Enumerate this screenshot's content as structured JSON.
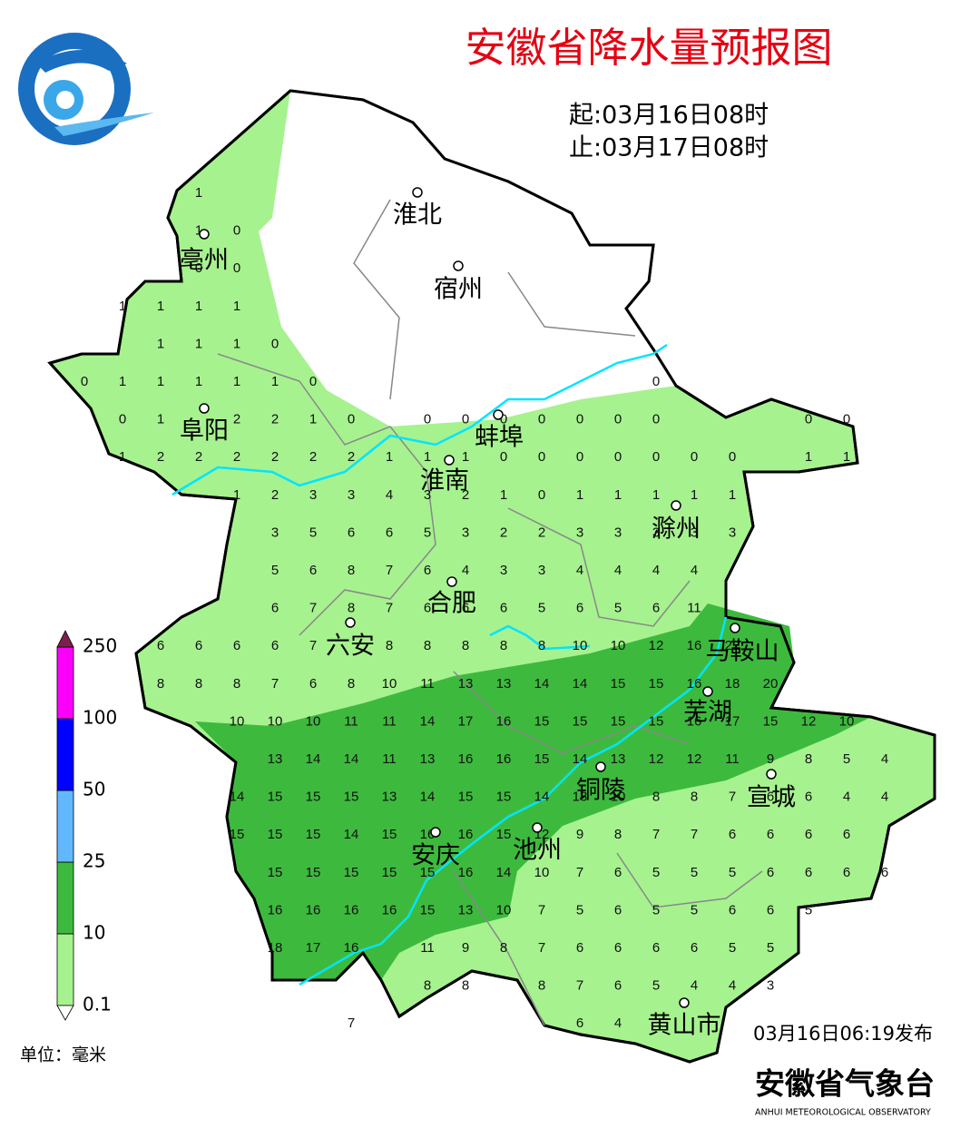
{
  "header": {
    "title": "安徽省降水量预报图",
    "start": "起:03月16日08时",
    "end": "止:03月17日08时"
  },
  "cities": [
    "淮北",
    "宿州",
    "亳州",
    "阜阳",
    "蚌埠",
    "淮南",
    "滁州",
    "合肥",
    "六安",
    "马鞍山",
    "芜湖",
    "宣城",
    "铜陵",
    "池州",
    "安庆",
    "黄山市"
  ],
  "legend": {
    "levels": [
      0.1,
      10,
      25,
      50,
      100,
      250
    ],
    "colors": [
      "#a6f28f",
      "#3dba3d",
      "#61b8ff",
      "#0000fe",
      "#fa00fa"
    ],
    "top_color": "#7e1e4f",
    "unit": "单位：毫米"
  },
  "footer": {
    "issued": "03月16日06:19发布",
    "agency": "安徽省气象台",
    "agency_en": "ANHUI METEOROLOGICAL OBSERVATORY"
  },
  "grid": [
    [
      null,
      null,
      null,
      1,
      null,
      null,
      null,
      null,
      null,
      null,
      null,
      null,
      null,
      null,
      null,
      null,
      null,
      null,
      null,
      null,
      null,
      null,
      null
    ],
    [
      null,
      null,
      null,
      1,
      0,
      null,
      null,
      null,
      null,
      null,
      null,
      null,
      null,
      null,
      null,
      null,
      null,
      null,
      null,
      null,
      null,
      null,
      null
    ],
    [
      null,
      null,
      null,
      0,
      0,
      null,
      null,
      null,
      null,
      null,
      null,
      null,
      null,
      null,
      null,
      null,
      null,
      null,
      null,
      null,
      null,
      null,
      null
    ],
    [
      null,
      1,
      1,
      1,
      1,
      null,
      null,
      null,
      null,
      null,
      null,
      null,
      null,
      null,
      null,
      null,
      null,
      null,
      null,
      null,
      null,
      null,
      null
    ],
    [
      null,
      null,
      1,
      1,
      1,
      0,
      null,
      null,
      null,
      null,
      null,
      null,
      null,
      null,
      null,
      null,
      null,
      null,
      null,
      null,
      null,
      null,
      null
    ],
    [
      0,
      1,
      1,
      1,
      1,
      1,
      0,
      null,
      null,
      null,
      null,
      null,
      null,
      null,
      null,
      0,
      null,
      null,
      null,
      null,
      null,
      null,
      null
    ],
    [
      null,
      0,
      1,
      null,
      2,
      2,
      1,
      0,
      null,
      0,
      0,
      0,
      0,
      0,
      0,
      0,
      null,
      null,
      null,
      0,
      0,
      null,
      null
    ],
    [
      null,
      1,
      2,
      2,
      2,
      2,
      2,
      2,
      1,
      1,
      1,
      0,
      0,
      0,
      0,
      0,
      0,
      0,
      null,
      1,
      1,
      null,
      null
    ],
    [
      null,
      null,
      null,
      null,
      1,
      2,
      3,
      3,
      4,
      3,
      2,
      1,
      0,
      1,
      1,
      1,
      1,
      1,
      null,
      null,
      null,
      null,
      null
    ],
    [
      null,
      null,
      null,
      null,
      null,
      3,
      5,
      6,
      6,
      5,
      3,
      2,
      2,
      3,
      3,
      3,
      3,
      3,
      null,
      null,
      null,
      null,
      null
    ],
    [
      null,
      null,
      null,
      null,
      null,
      5,
      6,
      8,
      7,
      6,
      4,
      3,
      3,
      4,
      4,
      4,
      4,
      null,
      null,
      null,
      null,
      null,
      null
    ],
    [
      null,
      null,
      null,
      null,
      null,
      6,
      7,
      8,
      7,
      6,
      6,
      6,
      5,
      6,
      5,
      6,
      11,
      null,
      null,
      null,
      null,
      null,
      null
    ],
    [
      null,
      null,
      6,
      6,
      6,
      6,
      7,
      null,
      8,
      8,
      8,
      8,
      8,
      10,
      10,
      12,
      16,
      22,
      null,
      null,
      null,
      null,
      null
    ],
    [
      null,
      null,
      8,
      8,
      8,
      7,
      6,
      8,
      10,
      11,
      13,
      13,
      14,
      14,
      15,
      15,
      16,
      18,
      20,
      null,
      null,
      null,
      null
    ],
    [
      null,
      null,
      null,
      null,
      10,
      10,
      10,
      11,
      11,
      14,
      17,
      16,
      15,
      15,
      15,
      15,
      16,
      17,
      15,
      12,
      10,
      null,
      null
    ],
    [
      null,
      null,
      null,
      null,
      null,
      13,
      14,
      14,
      11,
      13,
      16,
      16,
      15,
      14,
      13,
      12,
      12,
      11,
      9,
      8,
      5,
      4,
      null
    ],
    [
      null,
      null,
      null,
      null,
      14,
      15,
      15,
      15,
      13,
      14,
      15,
      15,
      14,
      13,
      10,
      8,
      8,
      7,
      6,
      6,
      4,
      4,
      null
    ],
    [
      null,
      null,
      null,
      null,
      15,
      15,
      15,
      14,
      15,
      16,
      16,
      15,
      12,
      9,
      8,
      7,
      7,
      6,
      6,
      6,
      6,
      null,
      null
    ],
    [
      null,
      null,
      null,
      null,
      null,
      15,
      15,
      15,
      15,
      15,
      16,
      14,
      10,
      7,
      6,
      5,
      5,
      5,
      6,
      6,
      6,
      6,
      null
    ],
    [
      null,
      null,
      null,
      null,
      null,
      16,
      16,
      16,
      16,
      15,
      13,
      10,
      7,
      5,
      6,
      5,
      5,
      6,
      6,
      5,
      null,
      null,
      null
    ],
    [
      null,
      null,
      null,
      null,
      null,
      18,
      17,
      16,
      null,
      11,
      9,
      8,
      7,
      6,
      6,
      6,
      6,
      5,
      5,
      null,
      null,
      null,
      null
    ],
    [
      null,
      null,
      null,
      null,
      null,
      null,
      null,
      null,
      null,
      8,
      8,
      null,
      8,
      7,
      6,
      5,
      4,
      4,
      3,
      null,
      null,
      null,
      null
    ],
    [
      null,
      null,
      null,
      null,
      null,
      null,
      null,
      7,
      null,
      null,
      null,
      null,
      null,
      6,
      4,
      null,
      null,
      null,
      null,
      null,
      null,
      null,
      null
    ]
  ]
}
